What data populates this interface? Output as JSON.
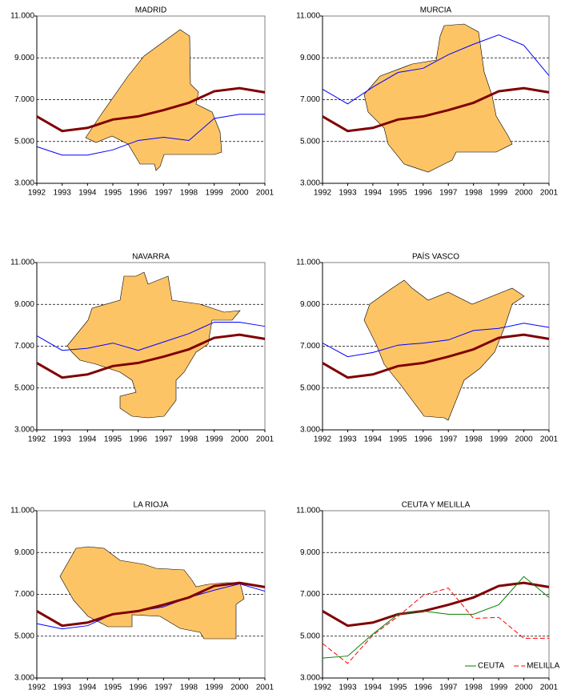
{
  "chart_data": [
    {
      "type": "line",
      "title": "MADRID",
      "x": [
        1992,
        1993,
        1994,
        1995,
        1996,
        1997,
        1998,
        1999,
        2000,
        2001
      ],
      "xlim": [
        1992,
        2001
      ],
      "xticks": [
        1992,
        1993,
        1994,
        1995,
        1996,
        1997,
        1998,
        1999,
        2000,
        2001
      ],
      "ylim": [
        3000,
        11000
      ],
      "yticks": [
        {
          "value": 3000,
          "label": "3.000"
        },
        {
          "value": 5000,
          "label": "5.000"
        },
        {
          "value": 7000,
          "label": "7.000"
        },
        {
          "value": 9000,
          "label": "9.000"
        },
        {
          "value": 11000,
          "label": "11.000"
        }
      ],
      "grid": true,
      "series": [
        {
          "color": "#0000ff",
          "width": 1,
          "values": [
            4750,
            4350,
            4350,
            4600,
            5050,
            5200,
            5050,
            6100,
            6300,
            6300
          ]
        },
        {
          "color": "#800000",
          "width": 3,
          "values": [
            6200,
            5500,
            5650,
            6050,
            6200,
            6500,
            6850,
            7400,
            7550,
            7350
          ]
        }
      ]
    },
    {
      "type": "line",
      "title": "MURCIA",
      "x": [
        1992,
        1993,
        1994,
        1995,
        1996,
        1997,
        1998,
        1999,
        2000,
        2001
      ],
      "xlim": [
        1992,
        2001
      ],
      "xticks": [
        1992,
        1993,
        1994,
        1995,
        1996,
        1997,
        1998,
        1999,
        2000,
        2001
      ],
      "ylim": [
        3000,
        11000
      ],
      "yticks": [
        {
          "value": 3000,
          "label": "3.000"
        },
        {
          "value": 5000,
          "label": "5.000"
        },
        {
          "value": 7000,
          "label": "7.000"
        },
        {
          "value": 9000,
          "label": "9.000"
        },
        {
          "value": 11000,
          "label": "11.000"
        }
      ],
      "grid": true,
      "series": [
        {
          "color": "#0000ff",
          "width": 1,
          "values": [
            7500,
            6800,
            7600,
            8300,
            8500,
            9150,
            9650,
            10100,
            9600,
            8150
          ]
        },
        {
          "color": "#800000",
          "width": 3,
          "values": [
            6200,
            5500,
            5650,
            6050,
            6200,
            6500,
            6850,
            7400,
            7550,
            7350
          ]
        }
      ]
    },
    {
      "type": "line",
      "title": "NAVARRA",
      "x": [
        1992,
        1993,
        1994,
        1995,
        1996,
        1997,
        1998,
        1999,
        2000,
        2001
      ],
      "xlim": [
        1992,
        2001
      ],
      "xticks": [
        1992,
        1993,
        1994,
        1995,
        1996,
        1997,
        1998,
        1999,
        2000,
        2001
      ],
      "ylim": [
        3000,
        11000
      ],
      "yticks": [
        {
          "value": 3000,
          "label": "3.000"
        },
        {
          "value": 5000,
          "label": "5.000"
        },
        {
          "value": 7000,
          "label": "7.000"
        },
        {
          "value": 9000,
          "label": "9.000"
        },
        {
          "value": 11000,
          "label": "11.000"
        }
      ],
      "grid": true,
      "series": [
        {
          "color": "#0000ff",
          "width": 1,
          "values": [
            7500,
            6800,
            6900,
            7150,
            6800,
            7200,
            7600,
            8150,
            8150,
            7950
          ]
        },
        {
          "color": "#800000",
          "width": 3,
          "values": [
            6200,
            5500,
            5650,
            6050,
            6200,
            6500,
            6850,
            7400,
            7550,
            7350
          ]
        }
      ]
    },
    {
      "type": "line",
      "title": "PAÍS VASCO",
      "x": [
        1992,
        1993,
        1994,
        1995,
        1996,
        1997,
        1998,
        1999,
        2000,
        2001
      ],
      "xlim": [
        1992,
        2001
      ],
      "xticks": [
        1992,
        1993,
        1994,
        1995,
        1996,
        1997,
        1998,
        1999,
        2000,
        2001
      ],
      "ylim": [
        3000,
        11000
      ],
      "yticks": [
        {
          "value": 3000,
          "label": "3.000"
        },
        {
          "value": 5000,
          "label": "5.000"
        },
        {
          "value": 7000,
          "label": "7.000"
        },
        {
          "value": 9000,
          "label": "9.000"
        },
        {
          "value": 11000,
          "label": "11.000"
        }
      ],
      "grid": true,
      "series": [
        {
          "color": "#0000ff",
          "width": 1,
          "values": [
            7150,
            6500,
            6700,
            7050,
            7150,
            7300,
            7750,
            7850,
            8100,
            7900
          ]
        },
        {
          "color": "#800000",
          "width": 3,
          "values": [
            6200,
            5500,
            5650,
            6050,
            6200,
            6500,
            6850,
            7400,
            7550,
            7350
          ]
        }
      ]
    },
    {
      "type": "line",
      "title": "LA RIOJA",
      "x": [
        1992,
        1993,
        1994,
        1995,
        1996,
        1997,
        1998,
        1999,
        2000,
        2001
      ],
      "xlim": [
        1992,
        2001
      ],
      "xticks": [
        1992,
        1993,
        1994,
        1995,
        1996,
        1997,
        1998,
        1999,
        2000,
        2001
      ],
      "ylim": [
        3000,
        11000
      ],
      "yticks": [
        {
          "value": 3000,
          "label": "3.000"
        },
        {
          "value": 5000,
          "label": "5.000"
        },
        {
          "value": 7000,
          "label": "7.000"
        },
        {
          "value": 9000,
          "label": "9.000"
        },
        {
          "value": 11000,
          "label": "11.000"
        }
      ],
      "grid": true,
      "series": [
        {
          "color": "#0000ff",
          "width": 1,
          "values": [
            5600,
            5350,
            5500,
            6050,
            6200,
            6400,
            6850,
            7200,
            7500,
            7150
          ]
        },
        {
          "color": "#800000",
          "width": 3,
          "values": [
            6200,
            5500,
            5650,
            6050,
            6200,
            6500,
            6850,
            7400,
            7550,
            7350
          ]
        }
      ]
    },
    {
      "type": "line",
      "title": "CEUTA Y MELILLA",
      "x": [
        1992,
        1993,
        1994,
        1995,
        1996,
        1997,
        1998,
        1999,
        2000,
        2001
      ],
      "xlim": [
        1992,
        2001
      ],
      "xticks": [
        1992,
        1993,
        1994,
        1995,
        1996,
        1997,
        1998,
        1999,
        2000,
        2001
      ],
      "ylim": [
        3000,
        11000
      ],
      "yticks": [
        {
          "value": 3000,
          "label": "3.000"
        },
        {
          "value": 5000,
          "label": "5.000"
        },
        {
          "value": 7000,
          "label": "7.000"
        },
        {
          "value": 9000,
          "label": "9.000"
        },
        {
          "value": 11000,
          "label": "11.000"
        }
      ],
      "grid": true,
      "legend": "lower right",
      "series": [
        {
          "color": "#800000",
          "width": 3,
          "values": [
            6200,
            5500,
            5650,
            6050,
            6200,
            6500,
            6850,
            7400,
            7550,
            7350
          ]
        },
        {
          "name": "CEUTA",
          "color": "#008000",
          "width": 1,
          "values": [
            3950,
            4050,
            5100,
            6050,
            6200,
            6050,
            6050,
            6500,
            7850,
            6850
          ]
        },
        {
          "name": "MELILLA",
          "color": "#ff0000",
          "width": 1,
          "dashed": true,
          "values": [
            4650,
            3700,
            5050,
            5950,
            6950,
            7300,
            5850,
            5900,
            4900,
            4900
          ]
        }
      ]
    }
  ]
}
